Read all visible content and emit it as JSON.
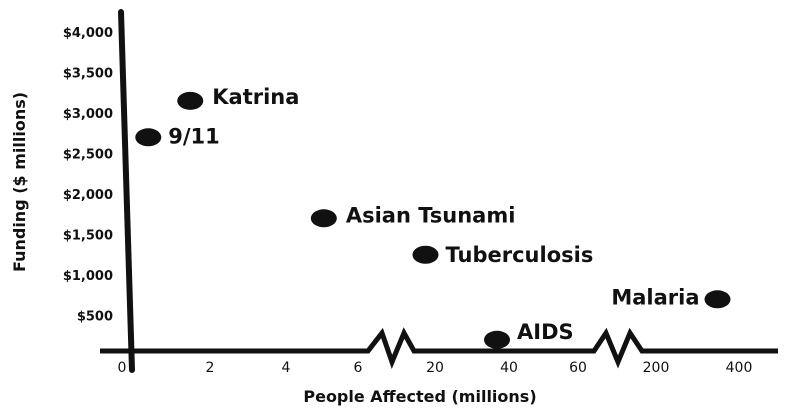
{
  "chart_data": {
    "type": "scatter",
    "title": "",
    "xlabel": "People Affected (millions)",
    "ylabel": "Funding ($ millions)",
    "x_scale": "broken",
    "x_segments": [
      {
        "range": [
          0,
          6
        ],
        "ticks": [
          "0",
          "2",
          "4",
          "6"
        ]
      },
      {
        "range": [
          20,
          60
        ],
        "ticks": [
          "20",
          "40",
          "60"
        ]
      },
      {
        "range": [
          200,
          400
        ],
        "ticks": [
          "200",
          "400"
        ]
      }
    ],
    "y_ticks": [
      "$500",
      "$1,000",
      "$1,500",
      "$2,000",
      "$2,500",
      "$3,000",
      "$3,500",
      "$4,000"
    ],
    "ylim": [
      0,
      4000
    ],
    "grid": false,
    "points": [
      {
        "label": "Katrina",
        "x": 1.5,
        "y": 3150
      },
      {
        "label": "9/11",
        "x": 0.4,
        "y": 2700
      },
      {
        "label": "Asian Tsunami",
        "x": 5,
        "y": 1700
      },
      {
        "label": "Tuberculosis",
        "x": 14,
        "y": 1250
      },
      {
        "label": "Malaria",
        "x": 350,
        "y": 700
      },
      {
        "label": "AIDS",
        "x": 40,
        "y": 200
      }
    ]
  }
}
